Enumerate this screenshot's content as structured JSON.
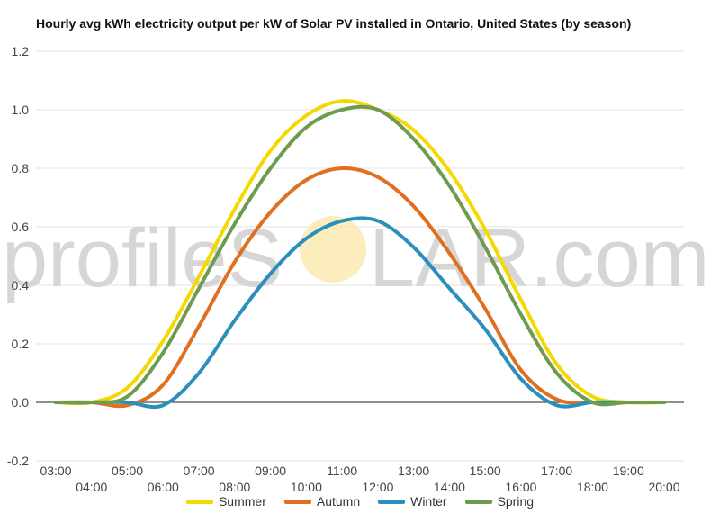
{
  "title": "Hourly avg kWh electricity output per kW of Solar PV installed in Ontario, United States (by season)",
  "watermark": {
    "left": "profileS",
    "right": "LAR.com",
    "sun_color": "#fbe7a6"
  },
  "colors": {
    "zero_line": "#222222",
    "grid": "#e3e3e3"
  },
  "chart_data": {
    "type": "line",
    "title": "Hourly avg kWh electricity output per kW of Solar PV installed in Ontario, United States (by season)",
    "xlabel": "",
    "ylabel": "",
    "x": [
      "03:00",
      "04:00",
      "05:00",
      "06:00",
      "07:00",
      "08:00",
      "09:00",
      "10:00",
      "11:00",
      "12:00",
      "13:00",
      "14:00",
      "15:00",
      "16:00",
      "17:00",
      "18:00",
      "19:00",
      "20:00"
    ],
    "y_ticks": [
      "-0.2",
      "0.0",
      "0.2",
      "0.4",
      "0.6",
      "0.8",
      "1.0",
      "1.2"
    ],
    "ylim": [
      -0.2,
      1.2
    ],
    "grid": true,
    "legend": "bottom",
    "series": [
      {
        "name": "Summer",
        "color": "#f5d800",
        "values": [
          0.0,
          0.0,
          0.05,
          0.21,
          0.43,
          0.66,
          0.86,
          0.98,
          1.03,
          1.0,
          0.93,
          0.79,
          0.59,
          0.35,
          0.13,
          0.02,
          0.0,
          0.0
        ]
      },
      {
        "name": "Autumn",
        "color": "#e07020",
        "values": [
          0.0,
          0.0,
          -0.01,
          0.06,
          0.26,
          0.48,
          0.65,
          0.76,
          0.8,
          0.77,
          0.67,
          0.51,
          0.32,
          0.11,
          0.01,
          0.0,
          0.0,
          0.0
        ]
      },
      {
        "name": "Winter",
        "color": "#2b8fbe",
        "values": [
          0.0,
          0.0,
          0.0,
          -0.01,
          0.1,
          0.28,
          0.44,
          0.56,
          0.62,
          0.62,
          0.53,
          0.39,
          0.25,
          0.08,
          -0.01,
          0.0,
          0.0,
          0.0
        ]
      },
      {
        "name": "Spring",
        "color": "#6e9b4e",
        "values": [
          0.0,
          0.0,
          0.02,
          0.17,
          0.39,
          0.61,
          0.8,
          0.94,
          1.0,
          1.0,
          0.9,
          0.74,
          0.53,
          0.3,
          0.1,
          0.0,
          0.0,
          0.0
        ]
      }
    ]
  }
}
